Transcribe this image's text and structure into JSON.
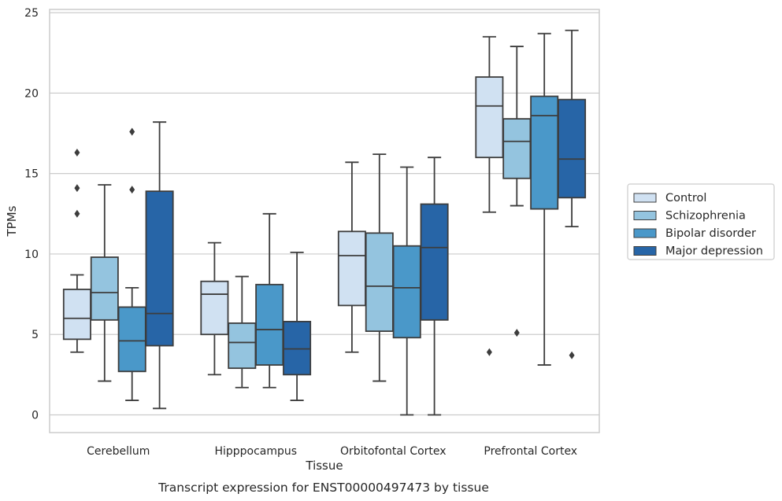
{
  "chart_data": {
    "type": "box",
    "title": "",
    "caption": "Transcript expression for ENST00000497473 by tissue",
    "xlabel": "Tissue",
    "ylabel": "TPMs",
    "ylim": [
      -1.1,
      25.2
    ],
    "yticks": [
      0,
      5,
      10,
      15,
      20,
      25
    ],
    "grid": true,
    "legend_position": "right",
    "categories": [
      "Cerebellum",
      "Hipppocampus",
      "Orbitofontal Cortex",
      "Prefrontal Cortex"
    ],
    "series": [
      {
        "name": "Control",
        "color": "#d0e1f2",
        "boxes": [
          {
            "whislo": 3.9,
            "q1": 4.7,
            "med": 6.0,
            "q3": 7.8,
            "whishi": 8.7,
            "fliers": [
              12.5,
              14.1,
              16.3
            ]
          },
          {
            "whislo": 2.5,
            "q1": 5.0,
            "med": 7.5,
            "q3": 8.3,
            "whishi": 10.7,
            "fliers": []
          },
          {
            "whislo": 3.9,
            "q1": 6.8,
            "med": 9.9,
            "q3": 11.4,
            "whishi": 15.7,
            "fliers": []
          },
          {
            "whislo": 12.6,
            "q1": 16.0,
            "med": 19.2,
            "q3": 21.0,
            "whishi": 23.5,
            "fliers": [
              3.9
            ]
          }
        ]
      },
      {
        "name": "Schizophrenia",
        "color": "#94c4df",
        "boxes": [
          {
            "whislo": 2.1,
            "q1": 5.9,
            "med": 7.6,
            "q3": 9.8,
            "whishi": 14.3,
            "fliers": []
          },
          {
            "whislo": 1.7,
            "q1": 2.9,
            "med": 4.5,
            "q3": 5.7,
            "whishi": 8.6,
            "fliers": []
          },
          {
            "whislo": 2.1,
            "q1": 5.2,
            "med": 8.0,
            "q3": 11.3,
            "whishi": 16.2,
            "fliers": []
          },
          {
            "whislo": 13.0,
            "q1": 14.7,
            "med": 17.0,
            "q3": 18.4,
            "whishi": 22.9,
            "fliers": [
              5.1
            ]
          }
        ]
      },
      {
        "name": "Bipolar disorder",
        "color": "#4a98c9",
        "boxes": [
          {
            "whislo": 0.9,
            "q1": 2.7,
            "med": 4.6,
            "q3": 6.7,
            "whishi": 7.9,
            "fliers": [
              14.0,
              17.6
            ]
          },
          {
            "whislo": 1.7,
            "q1": 3.1,
            "med": 5.3,
            "q3": 8.1,
            "whishi": 12.5,
            "fliers": []
          },
          {
            "whislo": 0.0,
            "q1": 4.8,
            "med": 7.9,
            "q3": 10.5,
            "whishi": 15.4,
            "fliers": []
          },
          {
            "whislo": 3.1,
            "q1": 12.8,
            "med": 18.6,
            "q3": 19.8,
            "whishi": 23.7,
            "fliers": []
          }
        ]
      },
      {
        "name": "Major depression",
        "color": "#2765a7",
        "boxes": [
          {
            "whislo": 0.4,
            "q1": 4.3,
            "med": 6.3,
            "q3": 13.9,
            "whishi": 18.2,
            "fliers": []
          },
          {
            "whislo": 0.9,
            "q1": 2.5,
            "med": 4.1,
            "q3": 5.8,
            "whishi": 10.1,
            "fliers": []
          },
          {
            "whislo": 0.0,
            "q1": 5.9,
            "med": 10.4,
            "q3": 13.1,
            "whishi": 16.0,
            "fliers": []
          },
          {
            "whislo": 11.7,
            "q1": 13.5,
            "med": 15.9,
            "q3": 19.6,
            "whishi": 23.9,
            "fliers": [
              3.7
            ]
          }
        ]
      }
    ]
  }
}
